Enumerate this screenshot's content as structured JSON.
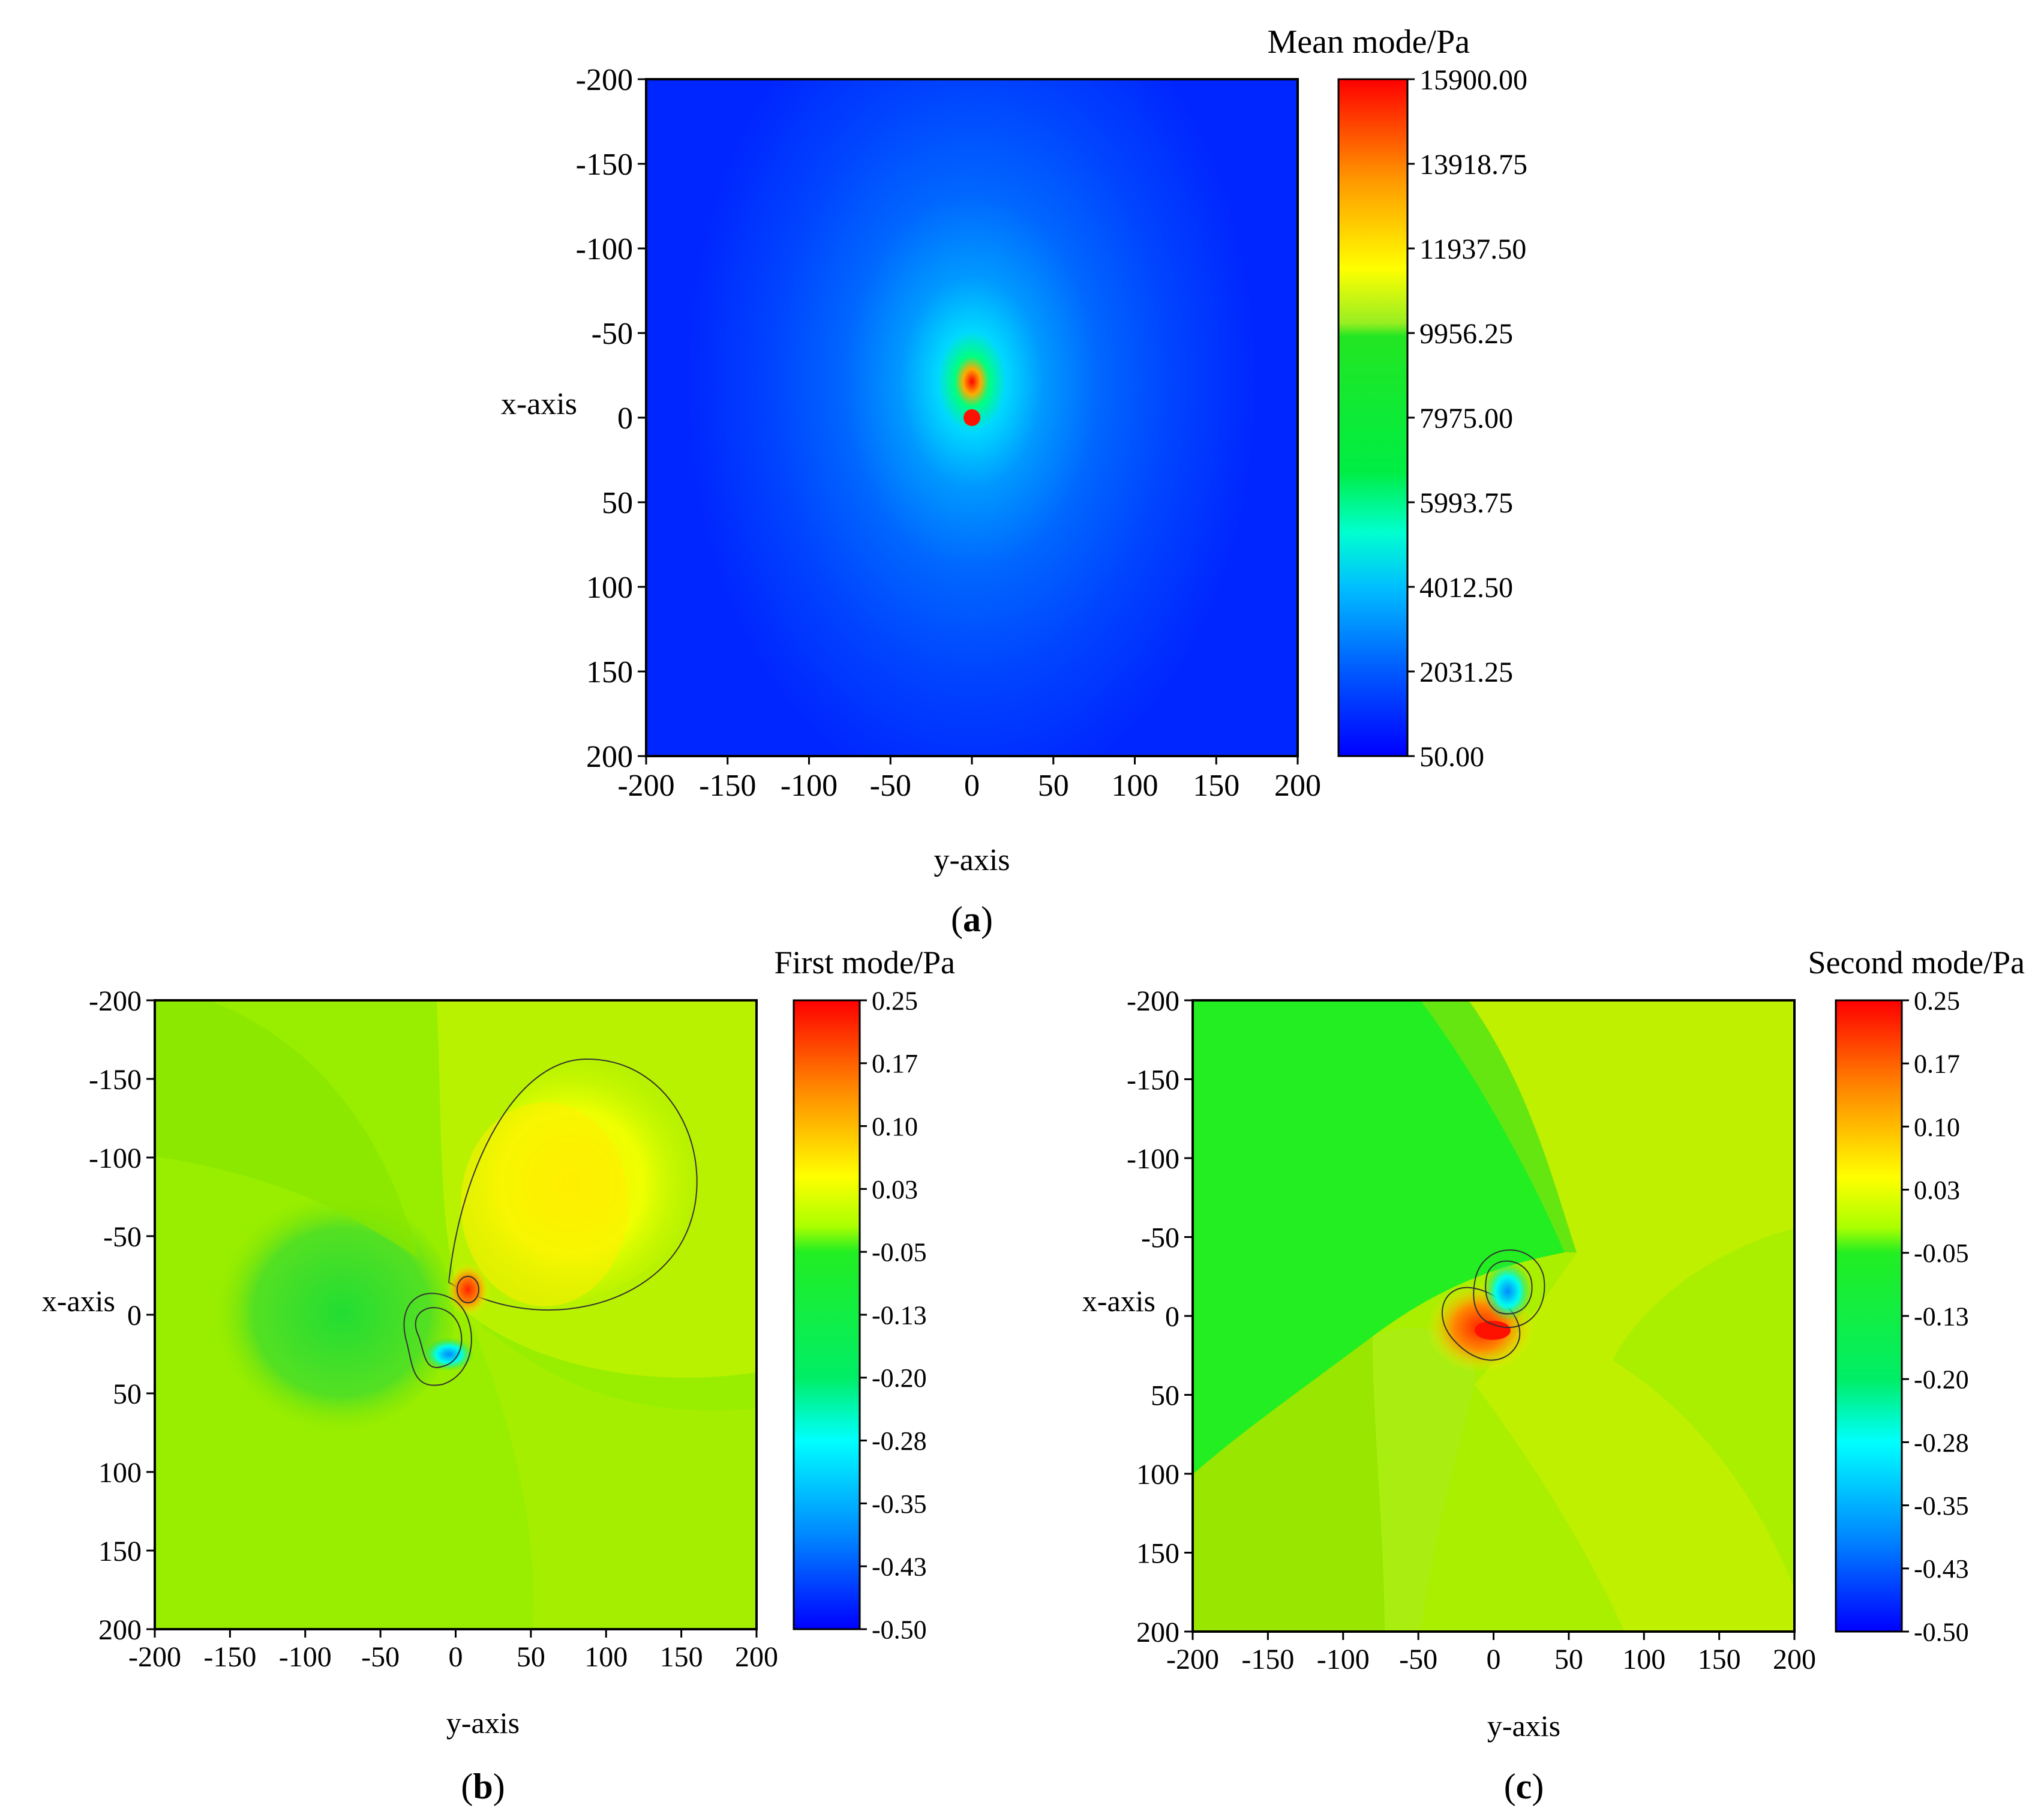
{
  "chart_data": [
    {
      "type": "heatmap",
      "panel_label": "a",
      "colorbar_title": "Mean mode/Pa",
      "xlabel": "y-axis",
      "ylabel": "x-axis",
      "xlim": [
        -200,
        200
      ],
      "ylim": [
        -200,
        200
      ],
      "y_inverted": true,
      "x_ticks": [
        "-200",
        "-150",
        "-100",
        "-50",
        "0",
        "50",
        "100",
        "150",
        "200"
      ],
      "y_ticks": [
        "-200",
        "-150",
        "-100",
        "-50",
        "0",
        "50",
        "100",
        "150",
        "200"
      ],
      "colorbar_range": [
        50,
        15900
      ],
      "colorbar_ticks": [
        "15900.00",
        "13918.75",
        "11937.50",
        "9956.25",
        "7975.00",
        "5993.75",
        "4012.50",
        "2031.25",
        "50.00"
      ],
      "peak": {
        "x": 0,
        "y": 0,
        "value": 15900
      },
      "background_value": 50
    },
    {
      "type": "heatmap",
      "panel_label": "b",
      "colorbar_title": "First mode/Pa",
      "xlabel": "y-axis",
      "ylabel": "x-axis",
      "xlim": [
        -200,
        200
      ],
      "ylim": [
        -200,
        200
      ],
      "y_inverted": true,
      "x_ticks": [
        "-200",
        "-150",
        "-100",
        "-50",
        "0",
        "50",
        "100",
        "150",
        "200"
      ],
      "y_ticks": [
        "-200",
        "-150",
        "-100",
        "-50",
        "0",
        "50",
        "100",
        "150",
        "200"
      ],
      "colorbar_range": [
        -0.5,
        0.25
      ],
      "colorbar_ticks": [
        "0.25",
        "0.17",
        "0.10",
        "0.03",
        "-0.05",
        "-0.13",
        "-0.20",
        "-0.28",
        "-0.35",
        "-0.43",
        "-0.50"
      ],
      "peak": {
        "x": -12,
        "y": 10,
        "value": 0.25
      },
      "trough": {
        "x": 8,
        "y": -2,
        "value": -0.5
      }
    },
    {
      "type": "heatmap",
      "panel_label": "c",
      "colorbar_title": "Second mode/Pa",
      "xlabel": "y-axis",
      "ylabel": "x-axis",
      "xlim": [
        -200,
        200
      ],
      "ylim": [
        -200,
        200
      ],
      "y_inverted": true,
      "x_ticks": [
        "-200",
        "-150",
        "-100",
        "-50",
        "0",
        "50",
        "100",
        "150",
        "200"
      ],
      "y_ticks": [
        "-200",
        "-150",
        "-100",
        "-50",
        "0",
        "50",
        "100",
        "150",
        "200"
      ],
      "colorbar_range": [
        -0.5,
        0.25
      ],
      "colorbar_ticks": [
        "0.25",
        "0.17",
        "0.10",
        "0.03",
        "-0.05",
        "-0.13",
        "-0.20",
        "-0.28",
        "-0.35",
        "-0.43",
        "-0.50"
      ],
      "peak": {
        "x": 8,
        "y": -5,
        "value": 0.25
      },
      "trough": {
        "x": -8,
        "y": 8,
        "value": -0.5
      }
    }
  ]
}
